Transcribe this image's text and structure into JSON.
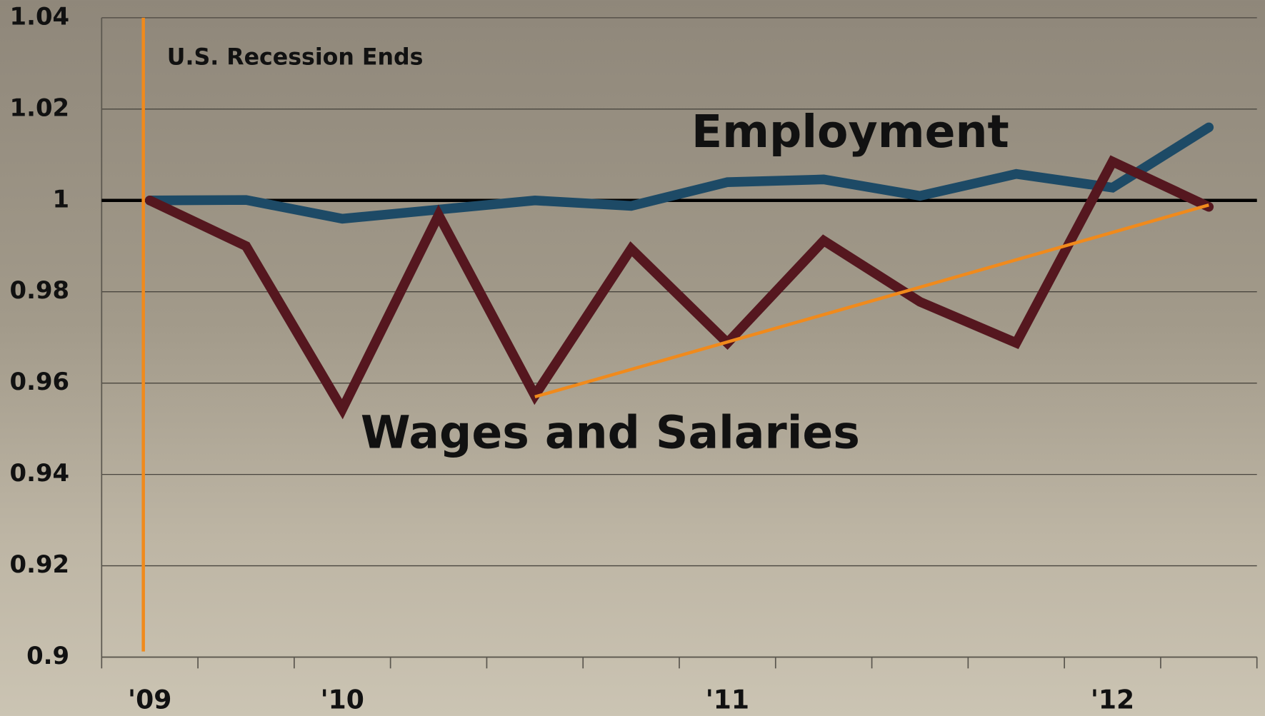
{
  "chart_data": {
    "type": "line",
    "categories": [
      "'09",
      null,
      "'10",
      null,
      null,
      null,
      "'11",
      null,
      null,
      null,
      "'12",
      null
    ],
    "series": [
      {
        "name": "Employment",
        "color": "#1d4a66",
        "values": [
          1.0,
          1.0001,
          0.996,
          0.998,
          1.0,
          0.9988,
          1.004,
          1.0046,
          1.001,
          1.0058,
          1.0028,
          1.016
        ]
      },
      {
        "name": "Wages and Salaries",
        "color": "#55171f",
        "values": [
          1.0,
          0.99,
          0.9543,
          0.9968,
          0.9573,
          0.9894,
          0.9688,
          0.9912,
          0.9778,
          0.9688,
          1.0085,
          0.9986
        ]
      }
    ],
    "ylim": [
      0.9,
      1.04
    ],
    "yticks": [
      0.9,
      0.92,
      0.94,
      0.96,
      0.98,
      1,
      1.02,
      1.04
    ],
    "grid": true,
    "reference_line": {
      "value": 1,
      "color": "#000000"
    },
    "event": {
      "text": "U.S. Recession Ends",
      "category": "'09",
      "color": "#f08a1c"
    },
    "trend": {
      "color": "#f08a1c",
      "x": [
        4,
        11
      ],
      "values": [
        0.957,
        0.999
      ]
    }
  }
}
